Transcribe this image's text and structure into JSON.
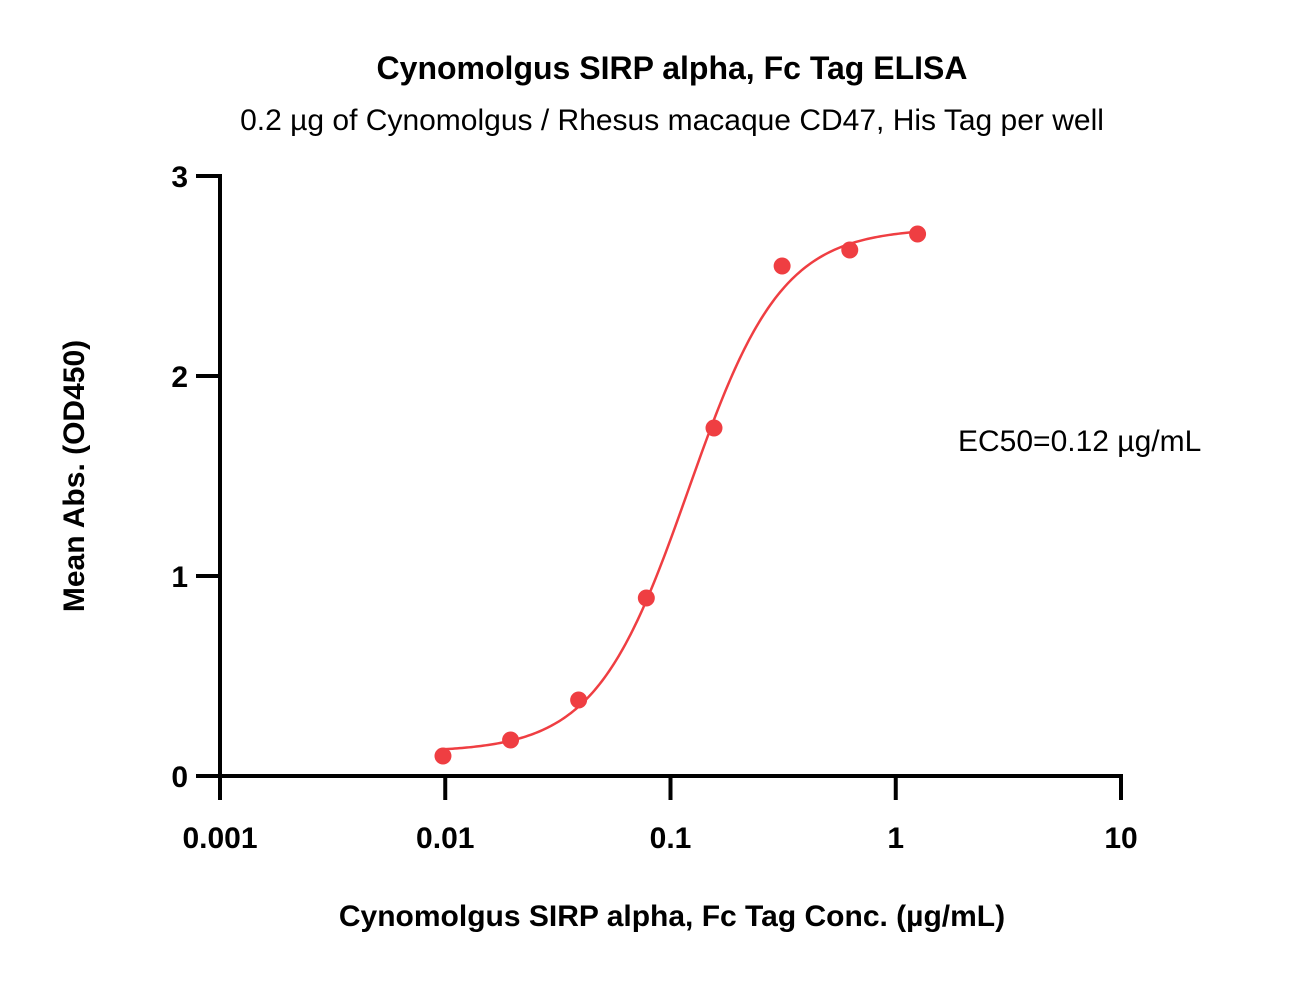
{
  "chart_data": {
    "type": "scatter",
    "title": "Cynomolgus SIRP alpha, Fc Tag ELISA",
    "subtitle": "0.2 µg of Cynomolgus / Rhesus macaque CD47, His Tag per well",
    "xlabel": "Cynomolgus SIRP alpha, Fc Tag Conc. (µg/mL)",
    "ylabel": "Mean Abs. (OD450)",
    "x_scale": "log",
    "xlim": [
      0.001,
      10
    ],
    "ylim": [
      0,
      3
    ],
    "x_ticks": [
      0.001,
      0.01,
      0.1,
      1,
      10
    ],
    "x_tick_labels": [
      "0.001",
      "0.01",
      "0.1",
      "1",
      "10"
    ],
    "y_ticks": [
      0,
      1,
      2,
      3
    ],
    "y_tick_labels": [
      "0",
      "1",
      "2",
      "3"
    ],
    "grid": false,
    "series": [
      {
        "color": "#ef3e42",
        "x": [
          0.00977,
          0.0195,
          0.0391,
          0.0781,
          0.156,
          0.313,
          0.625,
          1.25
        ],
        "y": [
          0.1,
          0.18,
          0.38,
          0.89,
          1.74,
          2.55,
          2.63,
          2.71
        ]
      }
    ],
    "fit_curve": {
      "color": "#ef3e42",
      "model": "4PL",
      "bottom": 0.12,
      "top": 2.74,
      "ec50": 0.12,
      "hill": 2.1,
      "x_range": [
        0.00977,
        1.25
      ]
    },
    "annotation": "EC50=0.12 µg/mL"
  }
}
